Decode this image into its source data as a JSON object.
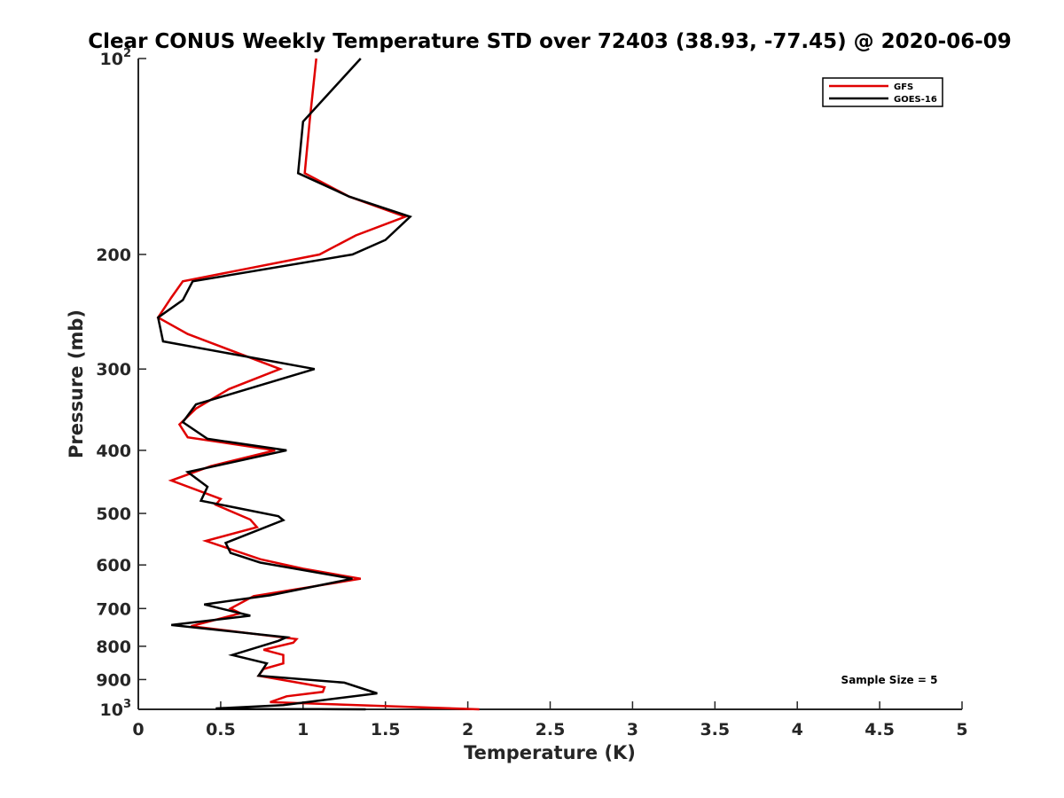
{
  "chart_data": {
    "type": "line",
    "title": "Clear CONUS Weekly Temperature STD over 72403 (38.93, -77.45) @ 2020-06-09",
    "xlabel": "Temperature (K)",
    "ylabel": "Pressure (mb)",
    "xlim": [
      0,
      5
    ],
    "ylim": [
      100,
      1000
    ],
    "y_scale": "log",
    "y_reversed": true,
    "grid": false,
    "legend_position": "top-right",
    "x_ticks": [
      {
        "value": 0,
        "label": "0"
      },
      {
        "value": 0.5,
        "label": "0.5"
      },
      {
        "value": 1,
        "label": "1"
      },
      {
        "value": 1.5,
        "label": "1.5"
      },
      {
        "value": 2,
        "label": "2"
      },
      {
        "value": 2.5,
        "label": "2.5"
      },
      {
        "value": 3,
        "label": "3"
      },
      {
        "value": 3.5,
        "label": "3.5"
      },
      {
        "value": 4,
        "label": "4"
      },
      {
        "value": 4.5,
        "label": "4.5"
      },
      {
        "value": 5,
        "label": "5"
      }
    ],
    "y_ticks": [
      {
        "value": 100,
        "base": "10",
        "exp": "2"
      },
      {
        "value": 200,
        "label": "200"
      },
      {
        "value": 300,
        "label": "300"
      },
      {
        "value": 400,
        "label": "400"
      },
      {
        "value": 500,
        "label": "500"
      },
      {
        "value": 600,
        "label": "600"
      },
      {
        "value": 700,
        "label": "700"
      },
      {
        "value": 800,
        "label": "800"
      },
      {
        "value": 900,
        "label": "900"
      },
      {
        "value": 1000,
        "base": "10",
        "exp": "3"
      }
    ],
    "series": [
      {
        "name": "GFS",
        "color": "#e00000",
        "points": [
          [
            1.08,
            100
          ],
          [
            1.04,
            125
          ],
          [
            1.01,
            150
          ],
          [
            1.28,
            163
          ],
          [
            1.62,
            175
          ],
          [
            1.32,
            187
          ],
          [
            1.1,
            200
          ],
          [
            0.27,
            220
          ],
          [
            0.2,
            233
          ],
          [
            0.12,
            250
          ],
          [
            0.3,
            265
          ],
          [
            0.86,
            300
          ],
          [
            0.55,
            322
          ],
          [
            0.35,
            345
          ],
          [
            0.25,
            365
          ],
          [
            0.3,
            382
          ],
          [
            0.83,
            400
          ],
          [
            0.44,
            423
          ],
          [
            0.2,
            445
          ],
          [
            0.5,
            475
          ],
          [
            0.47,
            485
          ],
          [
            0.68,
            511
          ],
          [
            0.72,
            525
          ],
          [
            0.41,
            551
          ],
          [
            0.74,
            588
          ],
          [
            1.0,
            608
          ],
          [
            1.35,
            630
          ],
          [
            1.02,
            650
          ],
          [
            0.7,
            670
          ],
          [
            0.56,
            700
          ],
          [
            0.62,
            712
          ],
          [
            0.32,
            745
          ],
          [
            0.96,
            780
          ],
          [
            0.94,
            790
          ],
          [
            0.76,
            810
          ],
          [
            0.88,
            825
          ],
          [
            0.88,
            850
          ],
          [
            0.76,
            867
          ],
          [
            0.73,
            888
          ],
          [
            1.13,
            925
          ],
          [
            1.12,
            940
          ],
          [
            0.9,
            955
          ],
          [
            0.8,
            975
          ],
          [
            2.07,
            1000
          ]
        ]
      },
      {
        "name": "GOES-16",
        "color": "#000000",
        "points": [
          [
            1.35,
            100
          ],
          [
            1.0,
            125
          ],
          [
            0.97,
            150
          ],
          [
            1.28,
            163
          ],
          [
            1.65,
            175
          ],
          [
            1.5,
            190
          ],
          [
            1.3,
            200
          ],
          [
            0.33,
            220
          ],
          [
            0.27,
            235
          ],
          [
            0.12,
            250
          ],
          [
            0.15,
            272
          ],
          [
            1.07,
            300
          ],
          [
            0.35,
            340
          ],
          [
            0.27,
            362
          ],
          [
            0.42,
            384
          ],
          [
            0.9,
            400
          ],
          [
            0.3,
            432
          ],
          [
            0.42,
            455
          ],
          [
            0.38,
            478
          ],
          [
            0.85,
            505
          ],
          [
            0.88,
            512
          ],
          [
            0.53,
            555
          ],
          [
            0.56,
            575
          ],
          [
            0.74,
            595
          ],
          [
            1.3,
            630
          ],
          [
            0.8,
            668
          ],
          [
            0.4,
            690
          ],
          [
            0.68,
            718
          ],
          [
            0.2,
            742
          ],
          [
            0.9,
            775
          ],
          [
            0.85,
            785
          ],
          [
            0.57,
            825
          ],
          [
            0.78,
            850
          ],
          [
            0.73,
            888
          ],
          [
            1.25,
            910
          ],
          [
            1.45,
            945
          ],
          [
            0.88,
            985
          ],
          [
            0.47,
            997
          ],
          [
            1.38,
            1000
          ]
        ]
      }
    ],
    "annotations": [
      "Sample Size = 5"
    ]
  }
}
